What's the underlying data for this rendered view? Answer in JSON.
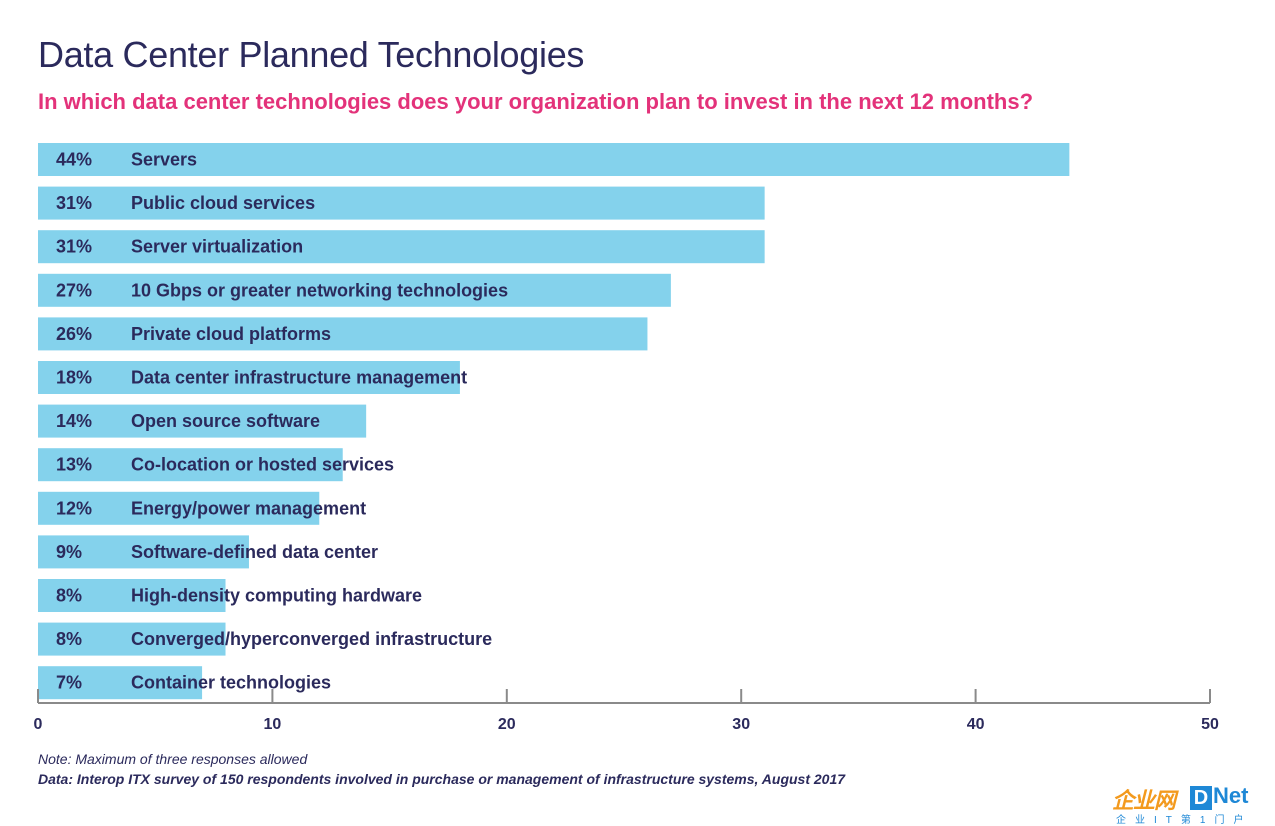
{
  "header": {
    "title": "Data Center Planned Technologies",
    "subtitle": "In which data center technologies does your organization plan to invest in the next 12 months?"
  },
  "footer": {
    "note": "Note: Maximum of three responses allowed",
    "source": "Data: Interop ITX survey of 150 respondents involved in purchase or management of infrastructure systems, August 2017"
  },
  "logo": {
    "cn_text": "企业网",
    "box_letter": "D",
    "net_text": "Net",
    "tagline": "企业IT第1门户"
  },
  "colors": {
    "bar": "#84d2ec",
    "label_text": "#2b2a5c",
    "subtitle": "#e3327a",
    "axis": "#8a8a8a"
  },
  "chart_data": {
    "type": "bar",
    "orientation": "horizontal",
    "categories": [
      "Servers",
      "Public cloud services",
      "Server virtualization",
      "10 Gbps or greater networking technologies",
      "Private cloud platforms",
      "Data center infrastructure management",
      "Open source software",
      "Co-location or hosted services",
      "Energy/power management",
      "Software-defined data center",
      "High-density computing hardware",
      "Converged/hyperconverged infrastructure",
      "Container technologies"
    ],
    "values": [
      44,
      31,
      31,
      27,
      26,
      18,
      14,
      13,
      12,
      9,
      8,
      8,
      7
    ],
    "value_labels": [
      "44%",
      "31%",
      "31%",
      "27%",
      "26%",
      "18%",
      "14%",
      "13%",
      "12%",
      "9%",
      "8%",
      "8%",
      "7%"
    ],
    "xlim": [
      0,
      50
    ],
    "xticks": [
      0,
      10,
      20,
      30,
      40,
      50
    ],
    "grid": false
  }
}
